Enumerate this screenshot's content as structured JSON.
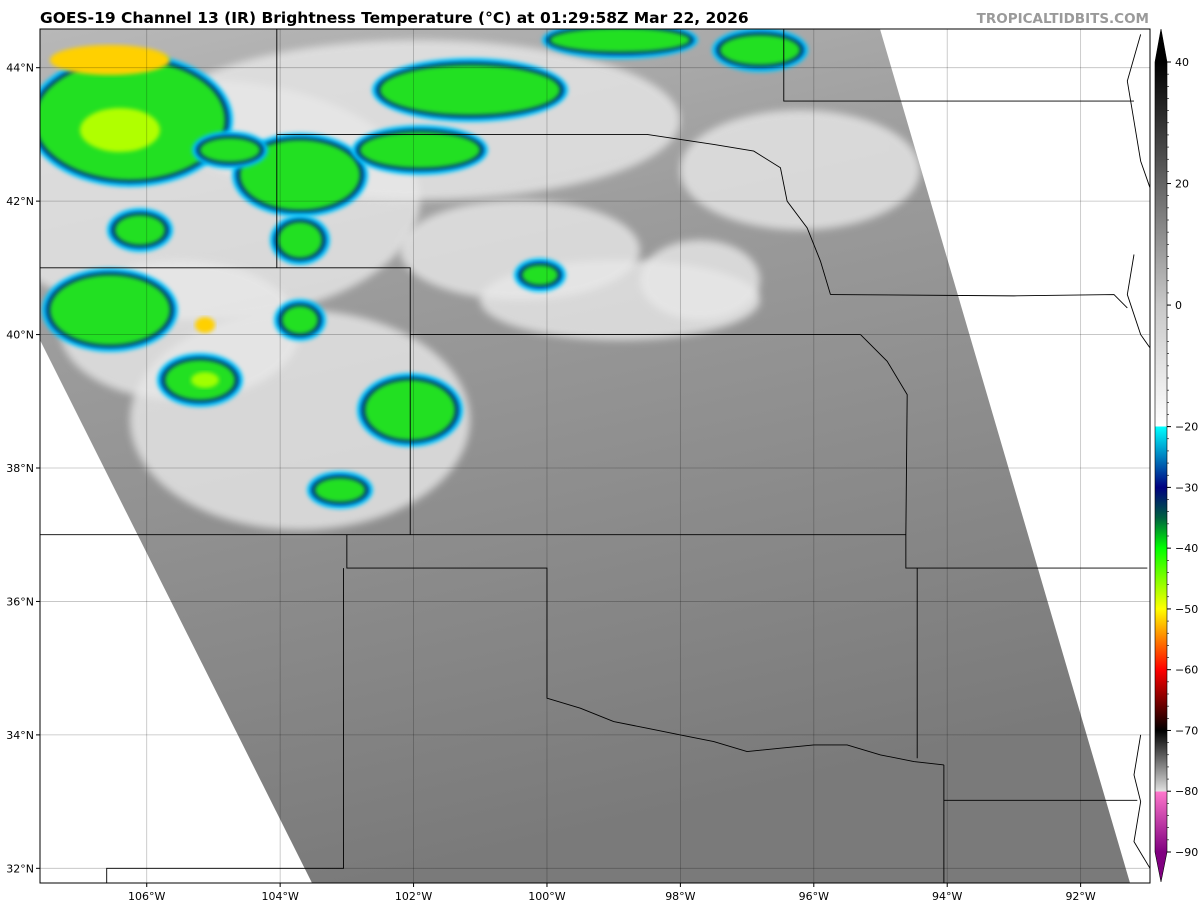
{
  "title": "GOES-19 Channel 13 (IR) Brightness Temperature (°C) at 01:29:58Z Mar 22, 2026",
  "credit": "TROPICALTIDBITS.COM",
  "map": {
    "extent_lon": [
      -107.6,
      -90.96
    ],
    "extent_lat": [
      31.78,
      44.58
    ],
    "lon_ticks": [
      -106,
      -104,
      -102,
      -100,
      -98,
      -96,
      -94,
      -92
    ],
    "lon_labels": [
      "106°W",
      "104°W",
      "102°W",
      "100°W",
      "98°W",
      "96°W",
      "94°W",
      "92°W"
    ],
    "lat_ticks": [
      32,
      34,
      36,
      38,
      40,
      42,
      44
    ],
    "lat_labels": [
      "32°N",
      "34°N",
      "36°N",
      "38°N",
      "40°N",
      "42°N",
      "44°N"
    ],
    "grid": true
  },
  "colorbar": {
    "range": [
      -90,
      40
    ],
    "ticks": [
      40,
      20,
      0,
      -20,
      -30,
      -40,
      -50,
      -60,
      -70,
      -80,
      -90
    ],
    "tick_labels": [
      "40",
      "20",
      "0",
      "−20",
      "−30",
      "−40",
      "−50",
      "−60",
      "−70",
      "−80",
      "−90"
    ],
    "stops": [
      {
        "v": 40,
        "c": "#000000"
      },
      {
        "v": 0,
        "c": "#c8c8c8"
      },
      {
        "v": -20,
        "c": "#ffffff"
      },
      {
        "v": -20.01,
        "c": "#00ffff"
      },
      {
        "v": -30,
        "c": "#000080"
      },
      {
        "v": -35,
        "c": "#006040"
      },
      {
        "v": -40,
        "c": "#00ff00"
      },
      {
        "v": -50,
        "c": "#ffff00"
      },
      {
        "v": -60,
        "c": "#ff0000"
      },
      {
        "v": -70,
        "c": "#000000"
      },
      {
        "v": -80,
        "c": "#e0e0e0"
      },
      {
        "v": -80.01,
        "c": "#ff77cc"
      },
      {
        "v": -90,
        "c": "#800080"
      }
    ]
  }
}
